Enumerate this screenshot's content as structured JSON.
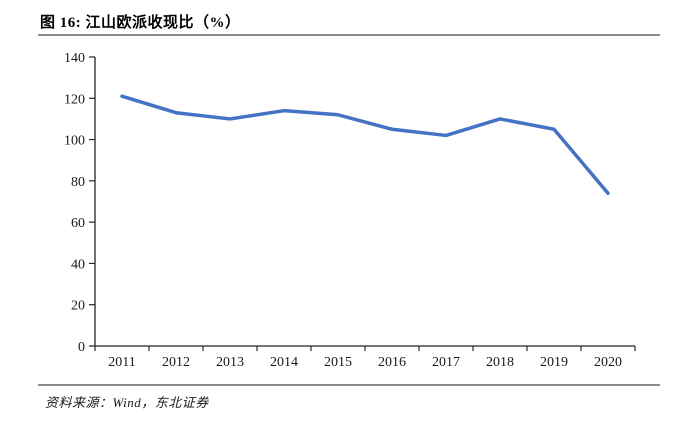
{
  "figure": {
    "title": "图 16: 江山欧派收现比（%）",
    "source_note": "资料来源：Wind，东北证券"
  },
  "colors": {
    "line": "#4472C4",
    "axis": "#262626",
    "rule": "#8C8C8C"
  },
  "chart_data": {
    "type": "line",
    "title": "江山欧派收现比（%）",
    "categories": [
      "2011",
      "2012",
      "2013",
      "2014",
      "2015",
      "2016",
      "2017",
      "2018",
      "2019",
      "2020"
    ],
    "values": [
      121,
      113,
      110,
      114,
      112,
      105,
      102,
      110,
      105,
      74
    ],
    "ylim": [
      0,
      140
    ],
    "yticks": [
      0,
      20,
      40,
      60,
      80,
      100,
      120,
      140
    ],
    "xlabel": "",
    "ylabel": "",
    "grid": false,
    "legend_position": "none"
  }
}
